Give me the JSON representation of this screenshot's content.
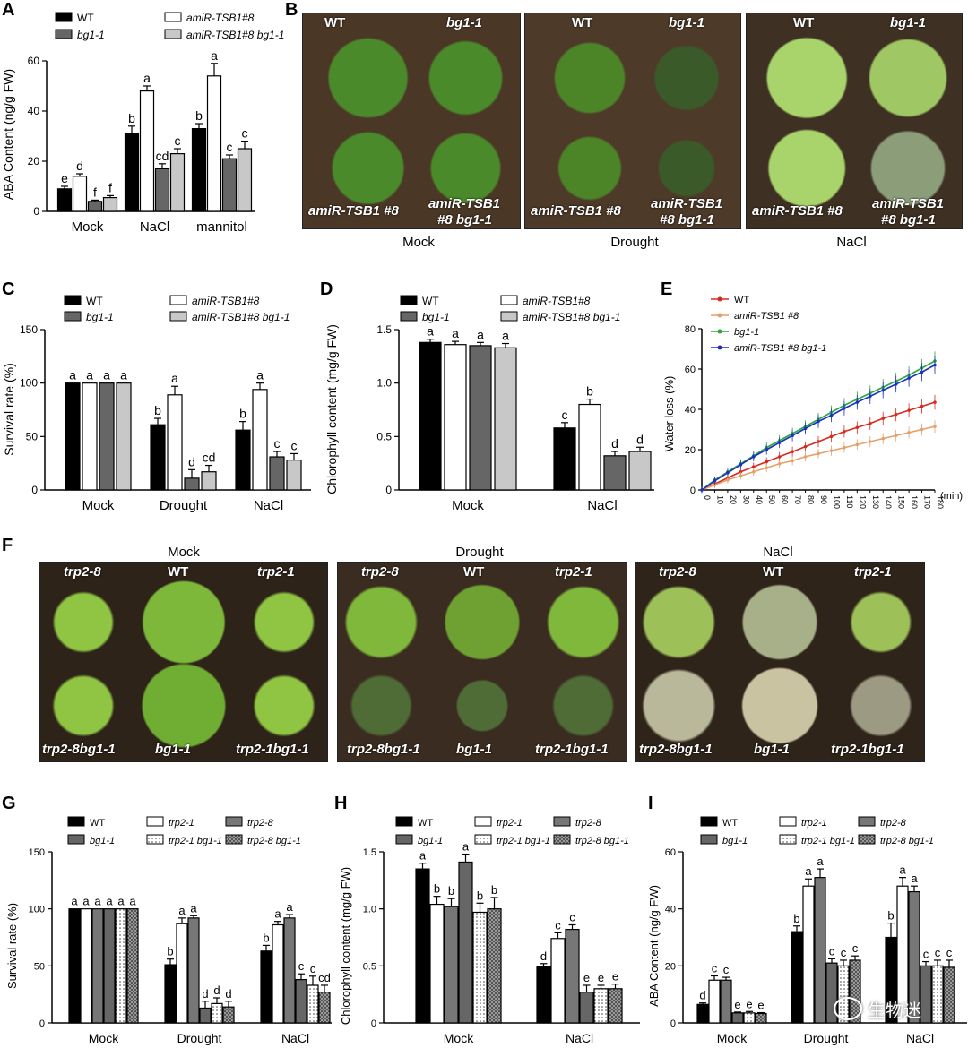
{
  "panel_letters": {
    "A": "A",
    "B": "B",
    "C": "C",
    "D": "D",
    "E": "E",
    "F": "F",
    "G": "G",
    "H": "H",
    "I": "I"
  },
  "panel_B": {
    "conditions": [
      "Mock",
      "Drought",
      "NaCl"
    ],
    "top_left": "WT",
    "top_right": "bg1-1",
    "bottom_left": "amiR-TSB1 #8",
    "bottom_right_1": "amiR-TSB1",
    "bottom_right_2": "#8 bg1-1"
  },
  "panel_F": {
    "conditions": [
      "Mock",
      "Drought",
      "NaCl"
    ],
    "top": [
      "trp2-8",
      "WT",
      "trp2-1"
    ],
    "bottom": [
      "trp2-8bg1-1",
      "bg1-1",
      "trp2-1bg1-1"
    ]
  },
  "watermark": "生物迷",
  "chart_data": [
    {
      "id": "A",
      "type": "bar",
      "ylabel": "ABA Content  (ng/g FW)",
      "ylim": [
        0,
        60
      ],
      "yticks": [
        0,
        20,
        40,
        60
      ],
      "categories": [
        "Mock",
        "NaCl",
        "mannitol"
      ],
      "legend": [
        "WT",
        "amiR-TSB1#8",
        "bg1-1",
        "amiR-TSB1#8 bg1-1"
      ],
      "series": [
        {
          "name": "WT",
          "values": [
            9,
            31,
            33
          ],
          "err": [
            1,
            3,
            2
          ],
          "letters": [
            "e",
            "b",
            "b"
          ]
        },
        {
          "name": "amiR-TSB1#8",
          "values": [
            14,
            48,
            54
          ],
          "err": [
            1,
            2,
            5
          ],
          "letters": [
            "d",
            "a",
            "a"
          ]
        },
        {
          "name": "bg1-1",
          "values": [
            4,
            17,
            21
          ],
          "err": [
            0.5,
            2,
            1.5
          ],
          "letters": [
            "f",
            "cd",
            "c"
          ]
        },
        {
          "name": "amiR-TSB1#8 bg1-1",
          "values": [
            5.5,
            23,
            25
          ],
          "err": [
            0.8,
            2,
            3
          ],
          "letters": [
            "f",
            "c",
            "c"
          ]
        }
      ]
    },
    {
      "id": "C",
      "type": "bar",
      "ylabel": "Survival rate (%)",
      "ylim": [
        0,
        150
      ],
      "yticks": [
        0,
        50,
        100,
        150
      ],
      "categories": [
        "Mock",
        "Drought",
        "NaCl"
      ],
      "legend": [
        "WT",
        "amiR-TSB1#8",
        "bg1-1",
        "amiR-TSB1#8 bg1-1"
      ],
      "series": [
        {
          "name": "WT",
          "values": [
            100,
            61,
            56
          ],
          "err": [
            0,
            6,
            8
          ],
          "letters": [
            "a",
            "b",
            "b"
          ]
        },
        {
          "name": "amiR-TSB1#8",
          "values": [
            100,
            89,
            94
          ],
          "err": [
            0,
            8,
            6
          ],
          "letters": [
            "a",
            "a",
            "a"
          ]
        },
        {
          "name": "bg1-1",
          "values": [
            100,
            11,
            31
          ],
          "err": [
            0,
            8,
            5
          ],
          "letters": [
            "a",
            "d",
            "c"
          ]
        },
        {
          "name": "amiR-TSB1#8 bg1-1",
          "values": [
            100,
            17,
            28
          ],
          "err": [
            0,
            6,
            6
          ],
          "letters": [
            "a",
            "cd",
            "c"
          ]
        }
      ]
    },
    {
      "id": "D",
      "type": "bar",
      "ylabel": "Chlorophyll content (mg/g FW)",
      "ylim": [
        0,
        1.5
      ],
      "yticks": [
        "0",
        "0.5",
        "1.0",
        "1.5"
      ],
      "categories": [
        "Mock",
        "NaCl"
      ],
      "legend": [
        "WT",
        "amiR-TSB1#8",
        "bg1-1",
        "amiR-TSB1#8 bg1-1"
      ],
      "series": [
        {
          "name": "WT",
          "values": [
            1.38,
            0.58
          ],
          "err": [
            0.03,
            0.05
          ],
          "letters": [
            "a",
            "c"
          ]
        },
        {
          "name": "amiR-TSB1#8",
          "values": [
            1.36,
            0.8
          ],
          "err": [
            0.03,
            0.05
          ],
          "letters": [
            "a",
            "b"
          ]
        },
        {
          "name": "bg1-1",
          "values": [
            1.35,
            0.32
          ],
          "err": [
            0.03,
            0.04
          ],
          "letters": [
            "a",
            "d"
          ]
        },
        {
          "name": "amiR-TSB1#8 bg1-1",
          "values": [
            1.33,
            0.36
          ],
          "err": [
            0.04,
            0.04
          ],
          "letters": [
            "a",
            "d"
          ]
        }
      ]
    },
    {
      "id": "E",
      "type": "line",
      "ylabel": "Water loss (%)",
      "ylim": [
        0,
        80
      ],
      "yticks": [
        0,
        20,
        40,
        60,
        80
      ],
      "xlabel": "(min)",
      "xlim": [
        0,
        180
      ],
      "xticks": [
        0,
        10,
        20,
        30,
        40,
        50,
        60,
        70,
        80,
        90,
        100,
        110,
        120,
        130,
        140,
        150,
        160,
        170,
        180
      ],
      "legend": [
        "WT",
        "amiR-TSB1 #8",
        "bg1-1",
        "amiR-TSB1 #8 bg1-1"
      ],
      "x": [
        0,
        10,
        20,
        30,
        40,
        50,
        60,
        70,
        80,
        90,
        100,
        110,
        120,
        130,
        140,
        150,
        160,
        170,
        180
      ],
      "series": [
        {
          "name": "WT",
          "color": "#d42a1f",
          "values": [
            0,
            3,
            6,
            9,
            11.5,
            14,
            16.5,
            19,
            21.5,
            24,
            26.5,
            29,
            31,
            33,
            35.5,
            37.5,
            39.5,
            41.5,
            43.5
          ]
        },
        {
          "name": "amiR-TSB1 #8",
          "color": "#e3a06a",
          "values": [
            0,
            2.5,
            5,
            7,
            9,
            11,
            13,
            14.5,
            16.5,
            18,
            19.5,
            21,
            22.5,
            24,
            25.5,
            27,
            28.5,
            30,
            31.5
          ]
        },
        {
          "name": "bg1-1",
          "color": "#2aa83a",
          "values": [
            0,
            5,
            9,
            13,
            17,
            21,
            24.5,
            28,
            31.5,
            35,
            38.5,
            42,
            45,
            48,
            51,
            54,
            57,
            60.5,
            64
          ]
        },
        {
          "name": "amiR-TSB1 #8 bg1-1",
          "color": "#1c2fc4",
          "values": [
            0,
            4.5,
            8.5,
            12.5,
            16.5,
            20,
            23.5,
            27,
            30.5,
            34,
            37,
            40.5,
            43.5,
            46.5,
            49.5,
            52.5,
            55.5,
            58.5,
            62
          ]
        }
      ]
    },
    {
      "id": "G",
      "type": "bar",
      "ylabel": "Survival rate (%)",
      "ylim": [
        0,
        150
      ],
      "yticks": [
        0,
        50,
        100,
        150
      ],
      "categories": [
        "Mock",
        "Drought",
        "NaCl"
      ],
      "legend": [
        "WT",
        "trp2-1",
        "trp2-8",
        "bg1-1",
        "trp2-1 bg1-1",
        "trp2-8 bg1-1"
      ],
      "series": [
        {
          "name": "WT",
          "values": [
            100,
            51,
            63
          ],
          "err": [
            0,
            5,
            5
          ],
          "letters": [
            "a",
            "b",
            "b"
          ]
        },
        {
          "name": "trp2-1",
          "values": [
            100,
            87,
            86
          ],
          "err": [
            0,
            5,
            3
          ],
          "letters": [
            "a",
            "a",
            "a"
          ]
        },
        {
          "name": "trp2-8",
          "values": [
            100,
            92,
            92
          ],
          "err": [
            0,
            2,
            3
          ],
          "letters": [
            "a",
            "a",
            "a"
          ]
        },
        {
          "name": "bg1-1",
          "values": [
            100,
            13,
            38
          ],
          "err": [
            0,
            6,
            5
          ],
          "letters": [
            "a",
            "d",
            "c"
          ]
        },
        {
          "name": "trp2-1 bg1-1",
          "values": [
            100,
            17,
            33
          ],
          "err": [
            0,
            5,
            8
          ],
          "letters": [
            "a",
            "d",
            "c"
          ]
        },
        {
          "name": "trp2-8 bg1-1",
          "values": [
            100,
            14,
            27
          ],
          "err": [
            0,
            5,
            6
          ],
          "letters": [
            "a",
            "d",
            "cd"
          ]
        }
      ]
    },
    {
      "id": "H",
      "type": "bar",
      "ylabel": "Chlorophyll content (mg/g FW)",
      "ylim": [
        0,
        1.5
      ],
      "yticks": [
        "0",
        "0.5",
        "1.0",
        "1.5"
      ],
      "categories": [
        "Mock",
        "NaCl"
      ],
      "legend": [
        "WT",
        "trp2-1",
        "trp2-8",
        "bg1-1",
        "trp2-1 bg1-1",
        "trp2-8 bg1-1"
      ],
      "series": [
        {
          "name": "WT",
          "values": [
            1.35,
            0.49
          ],
          "err": [
            0.05,
            0.03
          ],
          "letters": [
            "a",
            "d"
          ]
        },
        {
          "name": "trp2-1",
          "values": [
            1.04,
            0.74
          ],
          "err": [
            0.07,
            0.05
          ],
          "letters": [
            "b",
            "c"
          ]
        },
        {
          "name": "trp2-8",
          "values": [
            1.02,
            0.82
          ],
          "err": [
            0.07,
            0.04
          ],
          "letters": [
            "b",
            "c"
          ]
        },
        {
          "name": "bg1-1",
          "values": [
            1.41,
            0.27
          ],
          "err": [
            0.07,
            0.06
          ],
          "letters": [
            "a",
            "e"
          ]
        },
        {
          "name": "trp2-1 bg1-1",
          "values": [
            0.97,
            0.3
          ],
          "err": [
            0.08,
            0.03
          ],
          "letters": [
            "b",
            "e"
          ]
        },
        {
          "name": "trp2-8 bg1-1",
          "values": [
            1.0,
            0.3
          ],
          "err": [
            0.1,
            0.04
          ],
          "letters": [
            "b",
            "e"
          ]
        }
      ]
    },
    {
      "id": "I",
      "type": "bar",
      "ylabel": "ABA Content  (ng/g FW)",
      "ylim": [
        0,
        60
      ],
      "yticks": [
        0,
        20,
        40,
        60
      ],
      "categories": [
        "Mock",
        "Drought",
        "NaCl"
      ],
      "legend": [
        "WT",
        "trp2-1",
        "trp2-8",
        "bg1-1",
        "trp2-1 bg1-1",
        "trp2-8 bg1-1"
      ],
      "series": [
        {
          "name": "WT",
          "values": [
            6.5,
            32,
            30
          ],
          "err": [
            0.5,
            2,
            5
          ],
          "letters": [
            "d",
            "b",
            "b"
          ]
        },
        {
          "name": "trp2-1",
          "values": [
            15,
            48,
            48
          ],
          "err": [
            1.5,
            2.5,
            3
          ],
          "letters": [
            "c",
            "a",
            "a"
          ]
        },
        {
          "name": "trp2-8",
          "values": [
            15,
            51,
            46
          ],
          "err": [
            1,
            3,
            2
          ],
          "letters": [
            "c",
            "a",
            "a"
          ]
        },
        {
          "name": "bg1-1",
          "values": [
            3.5,
            21,
            20
          ],
          "err": [
            0.3,
            1.5,
            1.5
          ],
          "letters": [
            "e",
            "c",
            "c"
          ]
        },
        {
          "name": "trp2-1 bg1-1",
          "values": [
            3.5,
            20,
            20
          ],
          "err": [
            0.5,
            2,
            2
          ],
          "letters": [
            "e",
            "c",
            "c"
          ]
        },
        {
          "name": "trp2-8 bg1-1",
          "values": [
            3.3,
            22,
            19.5
          ],
          "err": [
            0.3,
            1.5,
            2.5
          ],
          "letters": [
            "e",
            "c",
            "c"
          ]
        }
      ]
    }
  ]
}
